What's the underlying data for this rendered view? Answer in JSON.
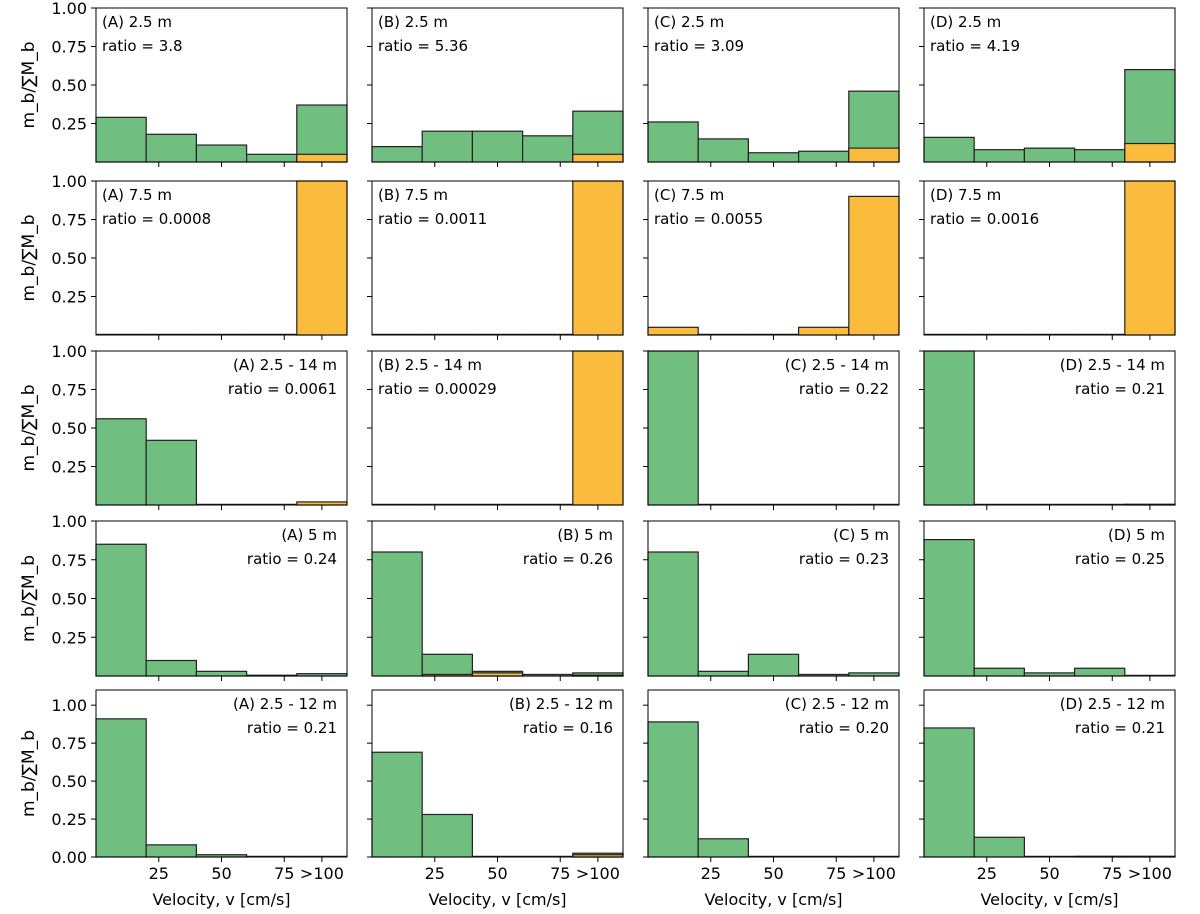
{
  "chart_data": {
    "type": "bar",
    "stacked": true,
    "layout": "5 rows x 4 columns",
    "colors": {
      "green": "#71bf80",
      "orange": "#fbbb3c"
    },
    "xlabel": "Velocity, v [cm/s]",
    "ylabel": "m_b/∑M_b",
    "bin_edges": [
      0,
      20,
      40,
      60,
      80,
      100
    ],
    "xtick_labels": [
      "25",
      "50",
      "75",
      ">100"
    ],
    "ytick_labels": [
      "0.25",
      "0.50",
      "0.75",
      "1.00"
    ],
    "ytick_labels_bottom_row": [
      "0.00",
      "0.25",
      "0.50",
      "0.75",
      "1.00"
    ],
    "ylim": [
      0,
      1
    ],
    "panels": [
      {
        "row": 0,
        "col": 0,
        "label": "(A) 2.5 m",
        "ratio": "ratio = 3.8",
        "green": [
          0.29,
          0.18,
          0.11,
          0.05,
          0.37
        ],
        "orange": [
          0,
          0,
          0,
          0,
          0.05
        ]
      },
      {
        "row": 0,
        "col": 1,
        "label": "(B) 2.5 m",
        "ratio": "ratio = 5.36",
        "green": [
          0.1,
          0.2,
          0.2,
          0.17,
          0.33
        ],
        "orange": [
          0,
          0,
          0,
          0,
          0.05
        ]
      },
      {
        "row": 0,
        "col": 2,
        "label": "(C) 2.5 m",
        "ratio": "ratio = 3.09",
        "green": [
          0.26,
          0.15,
          0.06,
          0.07,
          0.46
        ],
        "orange": [
          0,
          0,
          0,
          0,
          0.09
        ]
      },
      {
        "row": 0,
        "col": 3,
        "label": "(D) 2.5 m",
        "ratio": "ratio = 4.19",
        "green": [
          0.16,
          0.08,
          0.09,
          0.08,
          0.6
        ],
        "orange": [
          0,
          0,
          0,
          0,
          0.12
        ]
      },
      {
        "row": 1,
        "col": 0,
        "label": "(A) 7.5 m",
        "ratio": "ratio = 0.0008",
        "green": [
          0,
          0,
          0,
          0,
          0
        ],
        "orange": [
          0,
          0,
          0,
          0,
          1.0
        ]
      },
      {
        "row": 1,
        "col": 1,
        "label": "(B) 7.5 m",
        "ratio": "ratio = 0.0011",
        "green": [
          0,
          0,
          0,
          0,
          0
        ],
        "orange": [
          0,
          0,
          0,
          0,
          1.0
        ]
      },
      {
        "row": 1,
        "col": 2,
        "label": "(C) 7.5 m",
        "ratio": "ratio = 0.0055",
        "green": [
          0,
          0,
          0,
          0,
          0
        ],
        "orange": [
          0.05,
          0,
          0,
          0.05,
          0.9
        ]
      },
      {
        "row": 1,
        "col": 3,
        "label": "(D) 7.5 m",
        "ratio": "ratio = 0.0016",
        "green": [
          0,
          0,
          0,
          0,
          0
        ],
        "orange": [
          0,
          0,
          0,
          0,
          1.0
        ]
      },
      {
        "row": 2,
        "col": 0,
        "label": "(A) 2.5 - 14 m",
        "ratio": "ratio = 0.0061",
        "align": "right",
        "green": [
          0.56,
          0.42,
          0,
          0,
          0
        ],
        "orange": [
          0,
          0,
          0,
          0,
          0.02
        ]
      },
      {
        "row": 2,
        "col": 1,
        "label": "(B) 2.5 - 14 m",
        "ratio": "ratio = 0.00029",
        "green": [
          0,
          0,
          0,
          0,
          0
        ],
        "orange": [
          0,
          0,
          0,
          0,
          1.0
        ]
      },
      {
        "row": 2,
        "col": 2,
        "label": "(C) 2.5 - 14 m",
        "ratio": "ratio = 0.22",
        "align": "right",
        "green": [
          1.0,
          0,
          0,
          0,
          0
        ],
        "orange": [
          0,
          0,
          0,
          0,
          0
        ]
      },
      {
        "row": 2,
        "col": 3,
        "label": "(D) 2.5 - 14 m",
        "ratio": "ratio = 0.21",
        "align": "right",
        "green": [
          1.0,
          0,
          0,
          0,
          0.005
        ],
        "orange": [
          0,
          0,
          0,
          0,
          0
        ]
      },
      {
        "row": 3,
        "col": 0,
        "label": "(A) 5 m",
        "ratio": "ratio = 0.24",
        "align": "right",
        "green": [
          0.85,
          0.1,
          0.03,
          0.005,
          0.015
        ],
        "orange": [
          0,
          0,
          0,
          0,
          0
        ]
      },
      {
        "row": 3,
        "col": 1,
        "label": "(B) 5 m",
        "ratio": "ratio = 0.26",
        "align": "right",
        "green": [
          0.8,
          0.14,
          0.03,
          0.01,
          0.02
        ],
        "orange": [
          0,
          0.01,
          0.02,
          0,
          0.005
        ]
      },
      {
        "row": 3,
        "col": 2,
        "label": "(C) 5 m",
        "ratio": "ratio = 0.23",
        "align": "right",
        "green": [
          0.8,
          0.03,
          0.14,
          0.01,
          0.02
        ],
        "orange": [
          0,
          0,
          0,
          0,
          0
        ]
      },
      {
        "row": 3,
        "col": 3,
        "label": "(D) 5 m",
        "ratio": "ratio = 0.25",
        "align": "right",
        "green": [
          0.88,
          0.05,
          0.02,
          0.05,
          0
        ],
        "orange": [
          0,
          0,
          0,
          0,
          0
        ]
      },
      {
        "row": 4,
        "col": 0,
        "label": "(A) 2.5 - 12 m",
        "ratio": "ratio = 0.21",
        "align": "right",
        "green": [
          0.91,
          0.08,
          0.015,
          0,
          0
        ],
        "orange": [
          0,
          0,
          0,
          0,
          0
        ]
      },
      {
        "row": 4,
        "col": 1,
        "label": "(B) 2.5 - 12 m",
        "ratio": "ratio = 0.16",
        "align": "right",
        "green": [
          0.69,
          0.28,
          0,
          0,
          0.025
        ],
        "orange": [
          0,
          0,
          0,
          0,
          0.015
        ]
      },
      {
        "row": 4,
        "col": 2,
        "label": "(C) 2.5 - 12 m",
        "ratio": "ratio = 0.20",
        "align": "right",
        "green": [
          0.89,
          0.12,
          0,
          0,
          0
        ],
        "orange": [
          0,
          0,
          0,
          0,
          0
        ]
      },
      {
        "row": 4,
        "col": 3,
        "label": "(D) 2.5 - 12 m",
        "ratio": "ratio = 0.21",
        "align": "right",
        "green": [
          0.85,
          0.13,
          0,
          0.005,
          0.005
        ],
        "orange": [
          0,
          0,
          0,
          0,
          0
        ]
      }
    ]
  }
}
